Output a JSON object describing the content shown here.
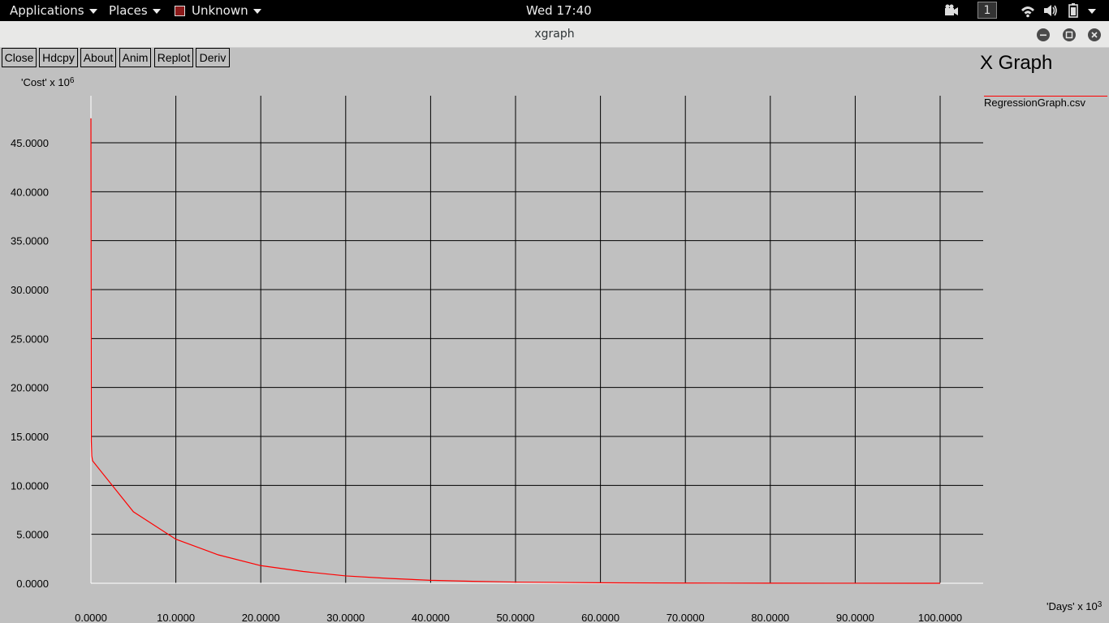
{
  "topbar": {
    "applications": "Applications",
    "places": "Places",
    "app_name": "Unknown",
    "clock": "Wed 17:40",
    "workspace": "1"
  },
  "window": {
    "title": "xgraph"
  },
  "buttons": {
    "close": "Close",
    "hdcpy": "Hdcpy",
    "about": "About",
    "anim": "Anim",
    "replot": "Replot",
    "deriv": "Deriv"
  },
  "graph": {
    "title": "X Graph",
    "legend_label": "RegressionGraph.csv",
    "ylabel": "'Cost' x 10",
    "ylabel_exp": "6",
    "xlabel": "'Days' x 10",
    "xlabel_exp": "3"
  },
  "chart_data": {
    "type": "line",
    "title": "X Graph",
    "xlabel": "'Days' x 10^3",
    "ylabel": "'Cost' x 10^6",
    "xlim": [
      0,
      100
    ],
    "ylim": [
      0,
      45
    ],
    "x_ticks": [
      "0.0000",
      "10.0000",
      "20.0000",
      "30.0000",
      "40.0000",
      "50.0000",
      "60.0000",
      "70.0000",
      "80.0000",
      "90.0000",
      "100.0000"
    ],
    "y_ticks": [
      "0.0000",
      "5.0000",
      "10.0000",
      "15.0000",
      "20.0000",
      "25.0000",
      "30.0000",
      "35.0000",
      "40.0000",
      "45.0000"
    ],
    "grid": true,
    "legend": "right",
    "colors": {
      "series": "#ff0000",
      "axis": "#ffffff",
      "grid": "#000000"
    },
    "series": [
      {
        "name": "RegressionGraph.csv",
        "x": [
          0,
          0.05,
          0.1,
          0.2,
          5,
          10,
          15,
          20,
          25,
          30,
          35,
          40,
          45,
          50,
          60,
          70,
          80,
          90,
          100
        ],
        "y": [
          47.5,
          14.5,
          13.0,
          12.5,
          7.3,
          4.5,
          2.9,
          1.8,
          1.2,
          0.75,
          0.5,
          0.3,
          0.2,
          0.12,
          0.05,
          0.02,
          0.01,
          0.005,
          0.002
        ]
      }
    ]
  }
}
